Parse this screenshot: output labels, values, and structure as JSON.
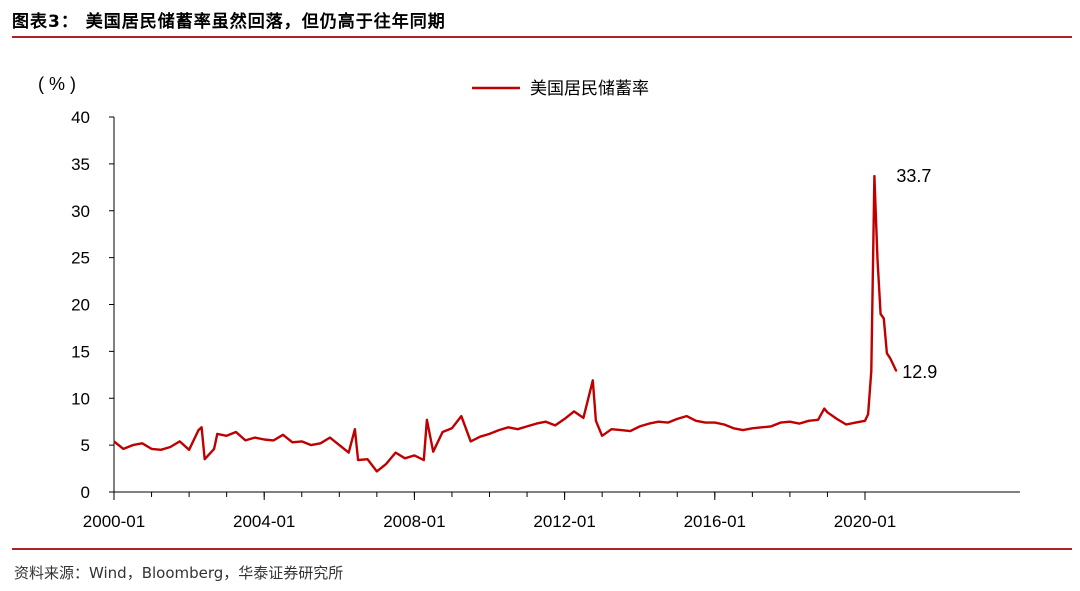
{
  "figure_title": "图表3：  美国居民储蓄率虽然回落，但仍高于往年同期",
  "source_note": "资料来源：Wind，Bloomberg，华泰证券研究所",
  "colors": {
    "series": "#c00000",
    "rule": "#b22222"
  },
  "chart_data": {
    "type": "line",
    "title": "",
    "ylabel": "( % )",
    "xlabel": "",
    "ylim": [
      0,
      40
    ],
    "yticks": [
      0,
      5,
      10,
      15,
      20,
      25,
      30,
      35,
      40
    ],
    "xticks": [
      "2000-01",
      "2004-01",
      "2008-01",
      "2012-01",
      "2016-01",
      "2020-01"
    ],
    "x_range": [
      "2000-01",
      "2020-11"
    ],
    "legend_position": "top-center",
    "grid": false,
    "series": [
      {
        "name": "美国居民储蓄率",
        "color": "#c00000",
        "points": [
          [
            "2000-01",
            5.4
          ],
          [
            "2000-04",
            4.6
          ],
          [
            "2000-07",
            5.0
          ],
          [
            "2000-10",
            5.2
          ],
          [
            "2001-01",
            4.6
          ],
          [
            "2001-04",
            4.5
          ],
          [
            "2001-07",
            4.8
          ],
          [
            "2001-10",
            5.4
          ],
          [
            "2002-01",
            4.5
          ],
          [
            "2002-04",
            6.6
          ],
          [
            "2002-05",
            6.9
          ],
          [
            "2002-06",
            3.5
          ],
          [
            "2002-09",
            4.6
          ],
          [
            "2002-10",
            6.2
          ],
          [
            "2003-01",
            6.0
          ],
          [
            "2003-04",
            6.4
          ],
          [
            "2003-07",
            5.5
          ],
          [
            "2003-10",
            5.8
          ],
          [
            "2004-01",
            5.6
          ],
          [
            "2004-04",
            5.5
          ],
          [
            "2004-07",
            6.1
          ],
          [
            "2004-10",
            5.3
          ],
          [
            "2005-01",
            5.4
          ],
          [
            "2005-04",
            5.0
          ],
          [
            "2005-07",
            5.2
          ],
          [
            "2005-10",
            5.8
          ],
          [
            "2006-01",
            5.0
          ],
          [
            "2006-04",
            4.2
          ],
          [
            "2006-06",
            6.7
          ],
          [
            "2006-07",
            3.4
          ],
          [
            "2006-10",
            3.5
          ],
          [
            "2007-01",
            2.2
          ],
          [
            "2007-04",
            3.0
          ],
          [
            "2007-07",
            4.2
          ],
          [
            "2007-10",
            3.6
          ],
          [
            "2008-01",
            3.9
          ],
          [
            "2008-04",
            3.4
          ],
          [
            "2008-05",
            7.7
          ],
          [
            "2008-07",
            4.3
          ],
          [
            "2008-10",
            6.4
          ],
          [
            "2009-01",
            6.8
          ],
          [
            "2009-04",
            8.1
          ],
          [
            "2009-07",
            5.4
          ],
          [
            "2009-10",
            5.9
          ],
          [
            "2010-01",
            6.2
          ],
          [
            "2010-04",
            6.6
          ],
          [
            "2010-07",
            6.9
          ],
          [
            "2010-10",
            6.7
          ],
          [
            "2011-01",
            7.0
          ],
          [
            "2011-04",
            7.3
          ],
          [
            "2011-07",
            7.5
          ],
          [
            "2011-10",
            7.1
          ],
          [
            "2012-01",
            7.8
          ],
          [
            "2012-04",
            8.6
          ],
          [
            "2012-07",
            7.9
          ],
          [
            "2012-10",
            11.9
          ],
          [
            "2012-11",
            7.6
          ],
          [
            "2013-01",
            6.0
          ],
          [
            "2013-04",
            6.7
          ],
          [
            "2013-07",
            6.6
          ],
          [
            "2013-10",
            6.5
          ],
          [
            "2014-01",
            7.0
          ],
          [
            "2014-04",
            7.3
          ],
          [
            "2014-07",
            7.5
          ],
          [
            "2014-10",
            7.4
          ],
          [
            "2015-01",
            7.8
          ],
          [
            "2015-04",
            8.1
          ],
          [
            "2015-07",
            7.6
          ],
          [
            "2015-10",
            7.4
          ],
          [
            "2016-01",
            7.4
          ],
          [
            "2016-04",
            7.2
          ],
          [
            "2016-07",
            6.8
          ],
          [
            "2016-10",
            6.6
          ],
          [
            "2017-01",
            6.8
          ],
          [
            "2017-04",
            6.9
          ],
          [
            "2017-07",
            7.0
          ],
          [
            "2017-10",
            7.4
          ],
          [
            "2018-01",
            7.5
          ],
          [
            "2018-04",
            7.3
          ],
          [
            "2018-07",
            7.6
          ],
          [
            "2018-10",
            7.7
          ],
          [
            "2018-12",
            8.9
          ],
          [
            "2019-01",
            8.5
          ],
          [
            "2019-04",
            7.8
          ],
          [
            "2019-07",
            7.2
          ],
          [
            "2019-10",
            7.4
          ],
          [
            "2020-01",
            7.6
          ],
          [
            "2020-02",
            8.3
          ],
          [
            "2020-03",
            12.9
          ],
          [
            "2020-04",
            33.7
          ],
          [
            "2020-05",
            24.8
          ],
          [
            "2020-06",
            19.0
          ],
          [
            "2020-07",
            18.5
          ],
          [
            "2020-08",
            14.8
          ],
          [
            "2020-09",
            14.3
          ],
          [
            "2020-10",
            13.6
          ],
          [
            "2020-11",
            12.9
          ]
        ]
      }
    ],
    "annotations": [
      {
        "label": "33.7",
        "x": "2020-04",
        "y": 33.7
      },
      {
        "label": "12.9",
        "x": "2020-11",
        "y": 12.9
      }
    ]
  }
}
